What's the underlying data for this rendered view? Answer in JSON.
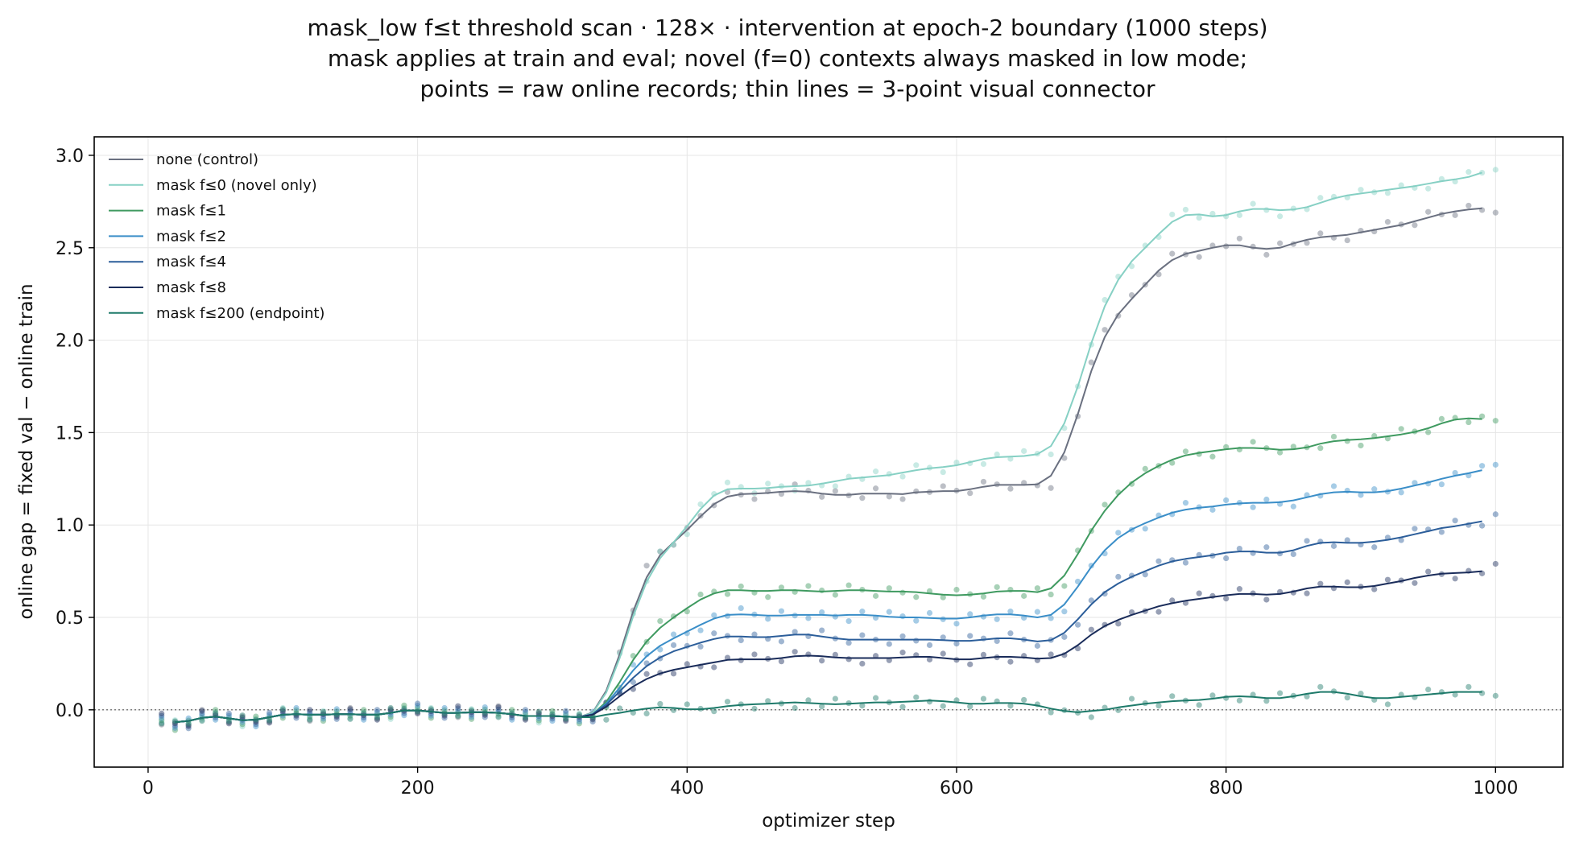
{
  "chart_data": {
    "type": "line",
    "title_lines": [
      "mask_low f≤t threshold scan · 128× · intervention at epoch-2 boundary (1000 steps)",
      "mask applies at train and eval; novel (f=0) contexts always masked in low mode;",
      "points = raw online records; thin lines = 3-point visual connector"
    ],
    "xlabel": "optimizer step",
    "ylabel": "online gap = fixed val − online train",
    "xlim": [
      -40,
      1050
    ],
    "ylim": [
      -0.31,
      3.1
    ],
    "xticks": [
      0,
      200,
      400,
      600,
      800,
      1000
    ],
    "yticks": [
      0.0,
      0.5,
      1.0,
      1.5,
      2.0,
      2.5,
      3.0
    ],
    "xtick_labels": [
      "0",
      "200",
      "400",
      "600",
      "800",
      "1000"
    ],
    "ytick_labels": [
      "0.0",
      "0.5",
      "1.0",
      "1.5",
      "2.0",
      "2.5",
      "3.0"
    ],
    "grid": true,
    "legend_position": "upper-left",
    "reference_line": {
      "y": 0.0,
      "style": "dotted"
    },
    "x": [
      10,
      20,
      30,
      40,
      50,
      60,
      70,
      80,
      90,
      100,
      110,
      120,
      130,
      140,
      150,
      160,
      170,
      180,
      190,
      200,
      210,
      220,
      230,
      240,
      250,
      260,
      270,
      280,
      290,
      300,
      310,
      320,
      330,
      340,
      350,
      360,
      370,
      380,
      390,
      400,
      410,
      420,
      430,
      440,
      450,
      460,
      470,
      480,
      490,
      500,
      510,
      520,
      530,
      540,
      550,
      560,
      570,
      580,
      590,
      600,
      610,
      620,
      630,
      640,
      650,
      660,
      670,
      680,
      690,
      700,
      710,
      720,
      730,
      740,
      750,
      760,
      770,
      780,
      790,
      800,
      810,
      820,
      830,
      840,
      850,
      860,
      870,
      880,
      890,
      900,
      910,
      920,
      930,
      940,
      950,
      960,
      970,
      980,
      990,
      1000
    ],
    "series": [
      {
        "name": "none (control)",
        "color": "#6a7080",
        "values": [
          -0.05,
          -0.08,
          -0.07,
          -0.03,
          -0.03,
          -0.05,
          -0.06,
          -0.06,
          -0.04,
          -0.02,
          -0.02,
          -0.03,
          -0.03,
          -0.02,
          -0.02,
          -0.03,
          -0.03,
          -0.02,
          0.0,
          0.01,
          -0.02,
          -0.02,
          -0.01,
          -0.02,
          -0.01,
          -0.01,
          -0.03,
          -0.03,
          -0.04,
          -0.03,
          -0.03,
          -0.05,
          -0.04,
          0.05,
          0.3,
          0.55,
          0.75,
          0.85,
          0.91,
          0.96,
          1.05,
          1.13,
          1.16,
          1.17,
          1.17,
          1.17,
          1.18,
          1.19,
          1.18,
          1.17,
          1.16,
          1.16,
          1.17,
          1.18,
          1.16,
          1.17,
          1.17,
          1.19,
          1.18,
          1.18,
          1.19,
          1.21,
          1.22,
          1.22,
          1.21,
          1.22,
          1.23,
          1.35,
          1.6,
          1.85,
          2.05,
          2.15,
          2.22,
          2.3,
          2.38,
          2.45,
          2.47,
          2.48,
          2.5,
          2.52,
          2.52,
          2.5,
          2.48,
          2.5,
          2.52,
          2.55,
          2.56,
          2.56,
          2.57,
          2.58,
          2.6,
          2.61,
          2.62,
          2.64,
          2.67,
          2.68,
          2.7,
          2.71,
          2.71,
          2.72
        ]
      },
      {
        "name": "mask f≤0 (novel only)",
        "color": "#86d0c4",
        "values": [
          -0.05,
          -0.08,
          -0.07,
          -0.03,
          -0.03,
          -0.05,
          -0.06,
          -0.06,
          -0.04,
          -0.02,
          -0.02,
          -0.03,
          -0.03,
          -0.02,
          -0.02,
          -0.03,
          -0.03,
          -0.02,
          0.0,
          0.01,
          -0.02,
          -0.02,
          -0.01,
          -0.02,
          -0.01,
          -0.01,
          -0.03,
          -0.03,
          -0.04,
          -0.03,
          -0.03,
          -0.05,
          -0.04,
          0.04,
          0.28,
          0.52,
          0.72,
          0.84,
          0.9,
          0.98,
          1.1,
          1.18,
          1.2,
          1.2,
          1.19,
          1.2,
          1.21,
          1.21,
          1.21,
          1.22,
          1.24,
          1.25,
          1.26,
          1.26,
          1.27,
          1.28,
          1.3,
          1.31,
          1.31,
          1.32,
          1.34,
          1.36,
          1.37,
          1.37,
          1.37,
          1.38,
          1.4,
          1.5,
          1.75,
          2.0,
          2.2,
          2.35,
          2.43,
          2.5,
          2.57,
          2.65,
          2.7,
          2.68,
          2.66,
          2.67,
          2.7,
          2.72,
          2.71,
          2.7,
          2.7,
          2.72,
          2.74,
          2.77,
          2.79,
          2.79,
          2.8,
          2.82,
          2.82,
          2.83,
          2.85,
          2.86,
          2.87,
          2.88,
          2.9,
          2.94
        ]
      },
      {
        "name": "mask f≤1",
        "color": "#3f9a60",
        "values": [
          -0.05,
          -0.08,
          -0.07,
          -0.03,
          -0.03,
          -0.05,
          -0.06,
          -0.06,
          -0.04,
          -0.02,
          -0.02,
          -0.03,
          -0.03,
          -0.02,
          -0.02,
          -0.03,
          -0.03,
          -0.02,
          0.0,
          0.01,
          -0.02,
          -0.02,
          -0.01,
          -0.02,
          -0.01,
          -0.01,
          -0.03,
          -0.03,
          -0.04,
          -0.03,
          -0.03,
          -0.05,
          -0.04,
          0.02,
          0.15,
          0.28,
          0.38,
          0.45,
          0.5,
          0.55,
          0.6,
          0.64,
          0.65,
          0.65,
          0.64,
          0.64,
          0.65,
          0.65,
          0.64,
          0.64,
          0.64,
          0.65,
          0.65,
          0.64,
          0.64,
          0.64,
          0.64,
          0.63,
          0.62,
          0.62,
          0.62,
          0.63,
          0.64,
          0.65,
          0.64,
          0.64,
          0.63,
          0.7,
          0.85,
          0.98,
          1.08,
          1.17,
          1.24,
          1.28,
          1.32,
          1.36,
          1.38,
          1.39,
          1.4,
          1.41,
          1.42,
          1.42,
          1.41,
          1.41,
          1.4,
          1.42,
          1.44,
          1.46,
          1.46,
          1.46,
          1.47,
          1.48,
          1.49,
          1.5,
          1.52,
          1.55,
          1.58,
          1.58,
          1.57,
          1.57
        ]
      },
      {
        "name": "mask f≤2",
        "color": "#3a8ec8",
        "values": [
          -0.05,
          -0.08,
          -0.07,
          -0.03,
          -0.03,
          -0.05,
          -0.06,
          -0.06,
          -0.04,
          -0.02,
          -0.02,
          -0.03,
          -0.03,
          -0.02,
          -0.02,
          -0.03,
          -0.03,
          -0.02,
          0.0,
          0.01,
          -0.02,
          -0.02,
          -0.01,
          -0.02,
          -0.01,
          -0.01,
          -0.03,
          -0.03,
          -0.04,
          -0.03,
          -0.03,
          -0.05,
          -0.04,
          0.02,
          0.12,
          0.22,
          0.3,
          0.35,
          0.39,
          0.42,
          0.46,
          0.5,
          0.52,
          0.52,
          0.51,
          0.51,
          0.51,
          0.51,
          0.52,
          0.51,
          0.51,
          0.51,
          0.52,
          0.51,
          0.5,
          0.5,
          0.5,
          0.5,
          0.49,
          0.49,
          0.5,
          0.51,
          0.52,
          0.52,
          0.51,
          0.5,
          0.49,
          0.55,
          0.67,
          0.78,
          0.87,
          0.94,
          0.98,
          1.01,
          1.04,
          1.07,
          1.09,
          1.09,
          1.1,
          1.11,
          1.12,
          1.12,
          1.12,
          1.12,
          1.13,
          1.15,
          1.17,
          1.18,
          1.18,
          1.18,
          1.17,
          1.18,
          1.2,
          1.21,
          1.23,
          1.25,
          1.27,
          1.28,
          1.29,
          1.32
        ]
      },
      {
        "name": "mask f≤4",
        "color": "#2c5e9a",
        "values": [
          -0.05,
          -0.08,
          -0.07,
          -0.03,
          -0.03,
          -0.05,
          -0.06,
          -0.06,
          -0.04,
          -0.02,
          -0.02,
          -0.03,
          -0.03,
          -0.02,
          -0.02,
          -0.03,
          -0.03,
          -0.02,
          0.0,
          0.01,
          -0.02,
          -0.02,
          -0.01,
          -0.02,
          -0.01,
          -0.01,
          -0.03,
          -0.03,
          -0.04,
          -0.03,
          -0.03,
          -0.05,
          -0.04,
          0.02,
          0.1,
          0.18,
          0.24,
          0.29,
          0.32,
          0.34,
          0.36,
          0.39,
          0.4,
          0.4,
          0.39,
          0.39,
          0.4,
          0.41,
          0.41,
          0.4,
          0.38,
          0.38,
          0.38,
          0.38,
          0.38,
          0.38,
          0.38,
          0.38,
          0.38,
          0.37,
          0.37,
          0.38,
          0.39,
          0.39,
          0.38,
          0.37,
          0.36,
          0.4,
          0.49,
          0.58,
          0.64,
          0.69,
          0.72,
          0.75,
          0.78,
          0.81,
          0.82,
          0.82,
          0.84,
          0.85,
          0.86,
          0.86,
          0.85,
          0.84,
          0.86,
          0.89,
          0.91,
          0.91,
          0.9,
          0.9,
          0.91,
          0.92,
          0.93,
          0.95,
          0.97,
          0.98,
          1.0,
          1.0,
          1.02,
          1.04
        ]
      },
      {
        "name": "mask f≤8",
        "color": "#1a2c5a",
        "values": [
          -0.05,
          -0.08,
          -0.07,
          -0.03,
          -0.03,
          -0.05,
          -0.06,
          -0.06,
          -0.04,
          -0.02,
          -0.02,
          -0.03,
          -0.03,
          -0.02,
          -0.02,
          -0.03,
          -0.03,
          -0.02,
          0.0,
          0.01,
          -0.02,
          -0.02,
          -0.01,
          -0.02,
          -0.01,
          -0.01,
          -0.03,
          -0.03,
          -0.04,
          -0.03,
          -0.03,
          -0.05,
          -0.04,
          0.01,
          0.08,
          0.13,
          0.17,
          0.2,
          0.22,
          0.23,
          0.24,
          0.26,
          0.27,
          0.28,
          0.27,
          0.27,
          0.28,
          0.29,
          0.3,
          0.29,
          0.28,
          0.28,
          0.28,
          0.28,
          0.28,
          0.28,
          0.29,
          0.29,
          0.28,
          0.27,
          0.27,
          0.28,
          0.29,
          0.29,
          0.28,
          0.28,
          0.27,
          0.29,
          0.35,
          0.41,
          0.46,
          0.49,
          0.51,
          0.54,
          0.56,
          0.58,
          0.59,
          0.6,
          0.61,
          0.62,
          0.63,
          0.63,
          0.62,
          0.62,
          0.64,
          0.66,
          0.67,
          0.67,
          0.66,
          0.66,
          0.67,
          0.68,
          0.7,
          0.71,
          0.73,
          0.74,
          0.74,
          0.74,
          0.75,
          0.76
        ]
      },
      {
        "name": "mask f≤200 (endpoint)",
        "color": "#1e7a6a",
        "values": [
          -0.05,
          -0.08,
          -0.07,
          -0.03,
          -0.03,
          -0.05,
          -0.06,
          -0.06,
          -0.04,
          -0.02,
          -0.02,
          -0.03,
          -0.03,
          -0.02,
          -0.02,
          -0.03,
          -0.03,
          -0.02,
          0.0,
          0.01,
          -0.02,
          -0.02,
          -0.01,
          -0.02,
          -0.01,
          -0.01,
          -0.03,
          -0.03,
          -0.04,
          -0.03,
          -0.03,
          -0.05,
          -0.04,
          -0.03,
          -0.01,
          -0.01,
          0.01,
          0.02,
          0.01,
          0.0,
          0.0,
          0.01,
          0.02,
          0.03,
          0.03,
          0.03,
          0.04,
          0.04,
          0.04,
          0.03,
          0.03,
          0.03,
          0.04,
          0.04,
          0.04,
          0.04,
          0.05,
          0.05,
          0.05,
          0.04,
          0.03,
          0.03,
          0.04,
          0.04,
          0.03,
          0.03,
          0.01,
          -0.02,
          -0.01,
          -0.01,
          0.0,
          0.01,
          0.03,
          0.03,
          0.04,
          0.05,
          0.05,
          0.05,
          0.06,
          0.07,
          0.08,
          0.07,
          0.06,
          0.06,
          0.07,
          0.09,
          0.1,
          0.1,
          0.09,
          0.07,
          0.06,
          0.06,
          0.07,
          0.08,
          0.08,
          0.09,
          0.1,
          0.1,
          0.09,
          0.1
        ]
      }
    ]
  }
}
